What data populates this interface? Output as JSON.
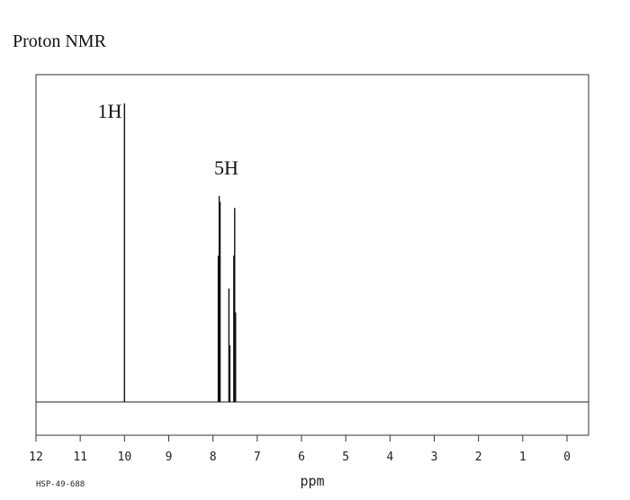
{
  "chart_data": {
    "type": "line",
    "title": "Proton NMR",
    "xlabel": "ppm",
    "ylabel": "",
    "xlim": [
      12,
      -0.5
    ],
    "ylim": [
      -0.3,
      1.1
    ],
    "x_ticks": [
      12,
      11,
      10,
      9,
      8,
      7,
      6,
      5,
      4,
      3,
      2,
      1,
      0
    ],
    "x_tick_labels": [
      "12",
      "11",
      "10",
      "9",
      "8",
      "7",
      "6",
      "5",
      "4",
      "3",
      "2",
      "1",
      "0"
    ],
    "grid": false,
    "legend": "none",
    "spectrum_code": "HSP-49-688",
    "baseline": 0,
    "peaks": [
      {
        "ppm": 10.0,
        "height": 1.0
      },
      {
        "ppm": 7.88,
        "height": 0.49
      },
      {
        "ppm": 7.86,
        "height": 0.69
      },
      {
        "ppm": 7.84,
        "height": 0.67
      },
      {
        "ppm": 7.64,
        "height": 0.38
      },
      {
        "ppm": 7.62,
        "height": 0.19
      },
      {
        "ppm": 7.53,
        "height": 0.49
      },
      {
        "ppm": 7.51,
        "height": 0.65
      },
      {
        "ppm": 7.49,
        "height": 0.3
      }
    ],
    "annotations": [
      {
        "text": "1H",
        "ppm": 10.0,
        "height": 1.0
      },
      {
        "text": "5H",
        "ppm": 7.7,
        "height": 0.75
      }
    ]
  }
}
